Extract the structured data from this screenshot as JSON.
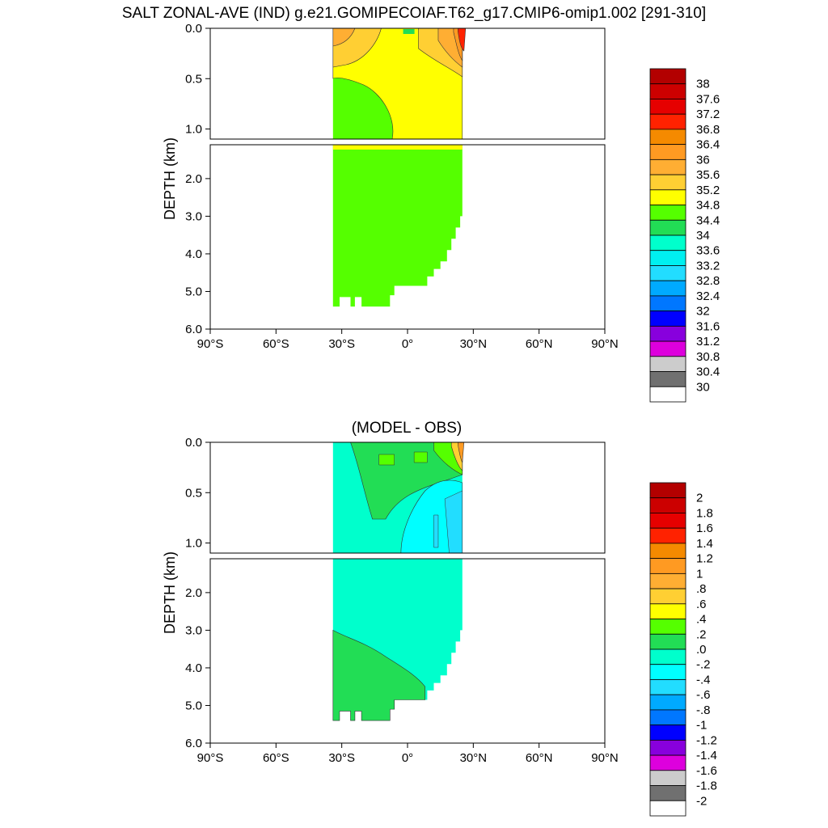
{
  "title": "SALT ZONAL-AVE (IND) g.e21.GOMIPECOIAF.T62_g17.CMIP6-omip1.002 [291-310]",
  "chart_data": [
    {
      "type": "heatmap",
      "title": "SALT ZONAL-AVE (IND) g.e21.GOMIPECOIAF.T62_g17.CMIP6-omip1.002 [291-310]",
      "xlabel": "",
      "ylabel": "DEPTH (km)",
      "x_ticks": [
        "90°S",
        "60°S",
        "30°S",
        "0°",
        "30°N",
        "60°N",
        "90°N"
      ],
      "y_ticks_upper": [
        "0.0",
        "0.5",
        "1.0"
      ],
      "y_ticks_lower": [
        "2.0",
        "3.0",
        "4.0",
        "5.0",
        "6.0"
      ],
      "xlim": [
        -90,
        90
      ],
      "ylim_upper_km": [
        0,
        1.1
      ],
      "ylim_lower_km": [
        1.1,
        6.0
      ],
      "colorbar": {
        "labels": [
          "38",
          "37.6",
          "37.2",
          "36.8",
          "36.4",
          "36",
          "35.6",
          "35.2",
          "34.8",
          "34.4",
          "34",
          "33.6",
          "33.2",
          "32.8",
          "32.4",
          "32",
          "31.6",
          "31.2",
          "30.8",
          "30.4",
          "30"
        ],
        "colors": [
          "#b30000",
          "#cc0000",
          "#e60000",
          "#ff2200",
          "#f58a00",
          "#ff9a22",
          "#ffae33",
          "#ffcf33",
          "#ffff00",
          "#55ff00",
          "#22dd55",
          "#00ffcc",
          "#00f0f0",
          "#22ddff",
          "#00aaff",
          "#0077ff",
          "#0000ff",
          "#8800dd",
          "#dd00dd",
          "#cccccc",
          "#707070",
          "#ffffff"
        ]
      },
      "fields": {
        "deep_salinity": 34.6,
        "surface_north": 36.6,
        "intermediate": 34.9
      }
    },
    {
      "type": "heatmap",
      "title": "(MODEL - OBS)",
      "xlabel": "",
      "ylabel": "DEPTH (km)",
      "x_ticks": [
        "90°S",
        "60°S",
        "30°S",
        "0°",
        "30°N",
        "60°N",
        "90°N"
      ],
      "y_ticks_upper": [
        "0.0",
        "0.5",
        "1.0"
      ],
      "y_ticks_lower": [
        "2.0",
        "3.0",
        "4.0",
        "5.0",
        "6.0"
      ],
      "xlim": [
        -90,
        90
      ],
      "ylim_upper_km": [
        0,
        1.1
      ],
      "ylim_lower_km": [
        1.1,
        6.0
      ],
      "colorbar": {
        "labels": [
          "2",
          "1.8",
          "1.6",
          "1.4",
          "1.2",
          "1",
          ".8",
          ".6",
          ".4",
          ".2",
          ".0",
          "-.2",
          "-.4",
          "-.6",
          "-.8",
          "-1",
          "-1.2",
          "-1.4",
          "-1.6",
          "-1.8",
          "-2"
        ],
        "colors": [
          "#b30000",
          "#cc0000",
          "#e60000",
          "#ff2200",
          "#f58a00",
          "#ff9a22",
          "#ffae33",
          "#ffcf33",
          "#ffff00",
          "#55ff00",
          "#22dd55",
          "#00ffcc",
          "#00ffff",
          "#22ddff",
          "#00aaff",
          "#0077ff",
          "#0000ff",
          "#8800dd",
          "#dd00dd",
          "#cccccc",
          "#707070",
          "#ffffff"
        ]
      },
      "fields": {
        "deep_bias": -0.1,
        "intermediate_bias": -0.3,
        "surface_north_bias": 0.8
      }
    }
  ]
}
